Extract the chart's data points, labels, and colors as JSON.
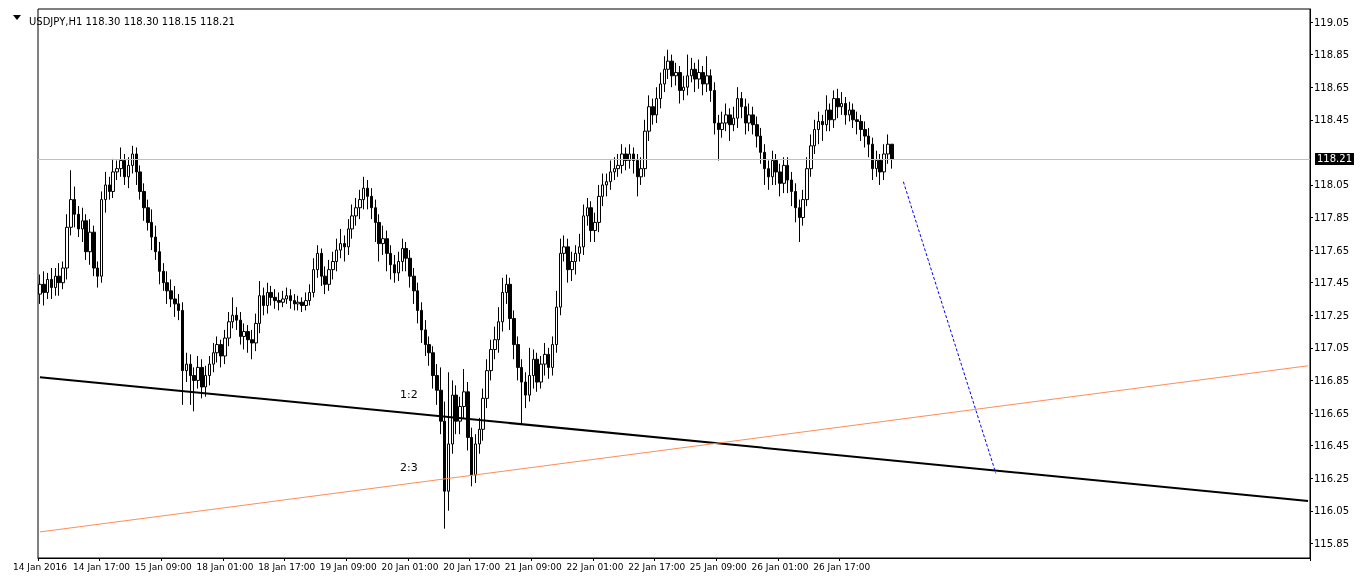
{
  "chart_data": {
    "type": "candlestick",
    "title": "USDJPY,H1 118.30 118.30 118.15 118.21",
    "color": "#000000",
    "categories": [
      "14 Jan 2016",
      null,
      null,
      null,
      null,
      null,
      null,
      null,
      null,
      null,
      null,
      null,
      null,
      null,
      null,
      null,
      "14 Jan 17:00",
      null,
      null,
      null,
      null,
      null,
      null,
      null,
      null,
      null,
      null,
      null,
      null,
      null,
      null,
      null,
      "15 Jan 09:00",
      null,
      null,
      null,
      null,
      null,
      null,
      null,
      null,
      null,
      null,
      null,
      null,
      null,
      null,
      null,
      "18 Jan 01:00",
      null,
      null,
      null,
      null,
      null,
      null,
      null,
      null,
      null,
      null,
      null,
      null,
      null,
      null,
      null,
      "18 Jan 17:00",
      null,
      null,
      null,
      null,
      null,
      null,
      null,
      null,
      null,
      null,
      null,
      null,
      null,
      null,
      null,
      "19 Jan 09:00",
      null,
      null,
      null,
      null,
      null,
      null,
      null,
      null,
      null,
      null,
      null,
      null,
      null,
      null,
      null,
      "20 Jan 01:00",
      null,
      null,
      null,
      null,
      null,
      null,
      null,
      null,
      null,
      null,
      null,
      null,
      null,
      null,
      null,
      "20 Jan 17:00",
      null,
      null,
      null,
      null,
      null,
      null,
      null,
      null,
      null,
      null,
      null,
      null,
      null,
      null,
      null,
      "21 Jan 09:00",
      null,
      null,
      null,
      null,
      null,
      null,
      null,
      null,
      null,
      null,
      null,
      null,
      null,
      null,
      null,
      "22 Jan 01:00",
      null,
      null,
      null,
      null,
      null,
      null,
      null,
      null,
      null,
      null,
      null,
      null,
      null,
      null,
      null,
      "22 Jan 17:00",
      null,
      null,
      null,
      null,
      null,
      null,
      null,
      null,
      null,
      null,
      null,
      null,
      null,
      null,
      null,
      "25 Jan 09:00",
      null,
      null,
      null,
      null,
      null,
      null,
      null,
      null,
      null,
      null,
      null,
      null,
      null,
      null,
      null,
      "26 Jan 01:00",
      null,
      null,
      null,
      null,
      null,
      null,
      null,
      null,
      null,
      null,
      null,
      null,
      null,
      null,
      null,
      "26 Jan 17:00",
      null,
      null,
      null,
      null,
      null,
      null,
      null,
      null,
      null,
      null,
      null,
      null,
      null,
      null,
      null,
      null,
      null,
      null,
      null,
      null,
      null,
      null,
      null,
      null,
      null,
      null,
      null,
      null,
      null,
      null,
      null,
      null,
      null,
      null,
      null,
      null,
      null,
      null,
      null,
      null,
      null,
      null,
      null,
      null,
      null,
      null,
      null,
      null,
      null,
      null,
      null,
      null,
      null,
      null,
      null,
      null,
      null,
      null,
      null,
      null,
      null,
      null,
      null,
      null,
      null,
      null,
      null,
      null,
      null,
      null,
      null,
      null,
      null,
      null,
      null,
      null,
      null,
      null,
      null,
      null,
      null,
      null,
      null,
      null,
      null,
      null,
      null,
      null,
      null,
      null,
      null,
      null,
      null,
      null,
      null,
      null,
      null,
      null,
      null,
      null,
      null,
      null,
      null,
      null,
      null,
      null,
      null,
      null,
      null,
      null,
      null,
      null,
      null,
      null,
      null,
      null,
      null,
      null,
      null,
      null,
      null
    ],
    "ohlc": [
      [
        117.38,
        117.5,
        117.32,
        117.44
      ],
      [
        117.44,
        117.52,
        117.31,
        117.39
      ],
      [
        117.39,
        117.51,
        117.35,
        117.47
      ],
      [
        117.47,
        117.54,
        117.35,
        117.42
      ],
      [
        117.42,
        117.54,
        117.37,
        117.49
      ],
      [
        117.49,
        117.57,
        117.37,
        117.45
      ],
      [
        117.45,
        117.58,
        117.41,
        117.54
      ],
      [
        117.54,
        117.87,
        117.47,
        117.79
      ],
      [
        117.79,
        118.14,
        117.74,
        117.96
      ],
      [
        117.96,
        118.04,
        117.79,
        117.87
      ],
      [
        117.87,
        117.92,
        117.73,
        117.78
      ],
      [
        117.78,
        117.91,
        117.7,
        117.83
      ],
      [
        117.83,
        117.87,
        117.59,
        117.64
      ],
      [
        117.64,
        117.84,
        117.56,
        117.76
      ],
      [
        117.76,
        117.8,
        117.49,
        117.54
      ],
      [
        117.54,
        117.58,
        117.42,
        117.49
      ],
      [
        117.49,
        118.01,
        117.45,
        117.96
      ],
      [
        117.96,
        118.13,
        117.88,
        118.05
      ],
      [
        118.05,
        118.1,
        117.96,
        118.01
      ],
      [
        118.01,
        118.21,
        117.97,
        118.13
      ],
      [
        118.13,
        118.2,
        118.08,
        118.15
      ],
      [
        118.15,
        118.28,
        118.1,
        118.2
      ],
      [
        118.2,
        118.24,
        118.05,
        118.1
      ],
      [
        118.1,
        118.22,
        118.03,
        118.17
      ],
      [
        118.17,
        118.29,
        118.12,
        118.24
      ],
      [
        118.24,
        118.28,
        118.05,
        118.13
      ],
      [
        118.13,
        118.17,
        117.96,
        118.01
      ],
      [
        118.01,
        118.06,
        117.83,
        117.91
      ],
      [
        117.91,
        117.96,
        117.77,
        117.82
      ],
      [
        117.82,
        117.9,
        117.65,
        117.73
      ],
      [
        117.73,
        117.8,
        117.59,
        117.64
      ],
      [
        117.64,
        117.7,
        117.44,
        117.52
      ],
      [
        117.52,
        117.57,
        117.4,
        117.45
      ],
      [
        117.45,
        117.52,
        117.32,
        117.4
      ],
      [
        117.4,
        117.47,
        117.3,
        117.35
      ],
      [
        117.35,
        117.43,
        117.24,
        117.32
      ],
      [
        117.32,
        117.38,
        117.22,
        117.28
      ],
      [
        117.28,
        117.33,
        116.7,
        116.91
      ],
      [
        116.91,
        117.02,
        116.84,
        116.95
      ],
      [
        116.95,
        117.01,
        116.7,
        116.88
      ],
      [
        116.88,
        116.93,
        116.66,
        116.85
      ],
      [
        116.85,
        117.0,
        116.8,
        116.93
      ],
      [
        116.93,
        116.98,
        116.74,
        116.81
      ],
      [
        116.81,
        116.94,
        116.75,
        116.88
      ],
      [
        116.88,
        117.0,
        116.82,
        116.95
      ],
      [
        116.95,
        117.08,
        116.9,
        117.02
      ],
      [
        117.02,
        117.12,
        116.96,
        117.07
      ],
      [
        117.07,
        117.1,
        116.93,
        117.0
      ],
      [
        117.0,
        117.16,
        116.95,
        117.11
      ],
      [
        117.11,
        117.27,
        117.06,
        117.21
      ],
      [
        117.21,
        117.36,
        117.17,
        117.25
      ],
      [
        117.25,
        117.3,
        117.16,
        117.22
      ],
      [
        117.22,
        117.27,
        117.07,
        117.12
      ],
      [
        117.12,
        117.2,
        117.04,
        117.15
      ],
      [
        117.15,
        117.19,
        117.02,
        117.1
      ],
      [
        117.1,
        117.16,
        116.98,
        117.08
      ],
      [
        117.08,
        117.26,
        117.03,
        117.2
      ],
      [
        117.2,
        117.46,
        117.14,
        117.37
      ],
      [
        117.37,
        117.42,
        117.25,
        117.31
      ],
      [
        117.31,
        117.45,
        117.26,
        117.39
      ],
      [
        117.39,
        117.43,
        117.31,
        117.36
      ],
      [
        117.36,
        117.41,
        117.29,
        117.34
      ],
      [
        117.34,
        117.39,
        117.28,
        117.33
      ],
      [
        117.33,
        117.4,
        117.3,
        117.35
      ],
      [
        117.35,
        117.42,
        117.32,
        117.37
      ],
      [
        117.37,
        117.41,
        117.29,
        117.34
      ],
      [
        117.34,
        117.38,
        117.28,
        117.32
      ],
      [
        117.32,
        117.37,
        117.28,
        117.33
      ],
      [
        117.33,
        117.36,
        117.27,
        117.31
      ],
      [
        117.31,
        117.39,
        117.28,
        117.34
      ],
      [
        117.34,
        117.44,
        117.31,
        117.39
      ],
      [
        117.39,
        117.6,
        117.36,
        117.53
      ],
      [
        117.53,
        117.68,
        117.48,
        117.63
      ],
      [
        117.63,
        117.66,
        117.43,
        117.49
      ],
      [
        117.49,
        117.55,
        117.38,
        117.44
      ],
      [
        117.44,
        117.59,
        117.4,
        117.53
      ],
      [
        117.53,
        117.64,
        117.47,
        117.58
      ],
      [
        117.58,
        117.72,
        117.52,
        117.65
      ],
      [
        117.65,
        117.78,
        117.6,
        117.69
      ],
      [
        117.69,
        117.74,
        117.58,
        117.67
      ],
      [
        117.67,
        117.84,
        117.62,
        117.78
      ],
      [
        117.78,
        117.93,
        117.72,
        117.86
      ],
      [
        117.86,
        117.97,
        117.8,
        117.91
      ],
      [
        117.91,
        118.02,
        117.84,
        117.96
      ],
      [
        117.96,
        118.1,
        117.9,
        118.03
      ],
      [
        118.03,
        118.08,
        117.9,
        117.98
      ],
      [
        117.98,
        118.03,
        117.84,
        117.91
      ],
      [
        117.91,
        117.96,
        117.7,
        117.82
      ],
      [
        117.82,
        117.87,
        117.58,
        117.69
      ],
      [
        117.69,
        117.8,
        117.62,
        117.72
      ],
      [
        117.72,
        117.77,
        117.52,
        117.63
      ],
      [
        117.63,
        117.68,
        117.47,
        117.56
      ],
      [
        117.56,
        117.62,
        117.45,
        117.51
      ],
      [
        117.51,
        117.64,
        117.46,
        117.58
      ],
      [
        117.58,
        117.72,
        117.52,
        117.66
      ],
      [
        117.66,
        117.7,
        117.52,
        117.6
      ],
      [
        117.6,
        117.65,
        117.42,
        117.49
      ],
      [
        117.49,
        117.54,
        117.32,
        117.4
      ],
      [
        117.4,
        117.45,
        117.2,
        117.28
      ],
      [
        117.28,
        117.33,
        117.08,
        117.16
      ],
      [
        117.16,
        117.22,
        117.0,
        117.07
      ],
      [
        117.07,
        117.12,
        116.94,
        117.02
      ],
      [
        117.02,
        117.06,
        116.8,
        116.88
      ],
      [
        116.88,
        116.95,
        116.7,
        116.79
      ],
      [
        116.79,
        116.93,
        116.52,
        116.6
      ],
      [
        116.6,
        116.72,
        115.94,
        116.17
      ],
      [
        116.17,
        116.9,
        116.05,
        116.46
      ],
      [
        116.46,
        116.85,
        116.4,
        116.76
      ],
      [
        116.76,
        116.82,
        116.52,
        116.6
      ],
      [
        116.6,
        116.75,
        116.52,
        116.69
      ],
      [
        116.69,
        116.92,
        116.62,
        116.78
      ],
      [
        116.78,
        116.84,
        116.42,
        116.5
      ],
      [
        116.5,
        116.56,
        116.2,
        116.27
      ],
      [
        116.27,
        116.52,
        116.22,
        116.46
      ],
      [
        116.46,
        116.62,
        116.4,
        116.55
      ],
      [
        116.55,
        116.8,
        116.48,
        116.74
      ],
      [
        116.74,
        116.98,
        116.68,
        116.91
      ],
      [
        116.91,
        117.1,
        116.85,
        117.04
      ],
      [
        117.04,
        117.18,
        116.98,
        117.1
      ],
      [
        117.1,
        117.3,
        117.02,
        117.21
      ],
      [
        117.21,
        117.48,
        117.15,
        117.39
      ],
      [
        117.39,
        117.5,
        117.32,
        117.44
      ],
      [
        117.44,
        117.48,
        117.16,
        117.23
      ],
      [
        117.23,
        117.28,
        116.98,
        117.07
      ],
      [
        117.07,
        117.12,
        116.85,
        116.93
      ],
      [
        116.93,
        116.98,
        116.58,
        116.84
      ],
      [
        116.84,
        116.9,
        116.68,
        116.76
      ],
      [
        116.76,
        117.05,
        116.72,
        116.88
      ],
      [
        116.88,
        117.04,
        116.8,
        116.98
      ],
      [
        116.98,
        117.02,
        116.78,
        116.84
      ],
      [
        116.84,
        117.0,
        116.8,
        116.95
      ],
      [
        116.95,
        117.08,
        116.88,
        117.01
      ],
      [
        117.01,
        117.05,
        116.86,
        116.93
      ],
      [
        116.93,
        117.12,
        116.88,
        117.07
      ],
      [
        117.07,
        117.4,
        117.02,
        117.3
      ],
      [
        117.3,
        117.72,
        117.25,
        117.63
      ],
      [
        117.63,
        117.74,
        117.58,
        117.67
      ],
      [
        117.67,
        117.72,
        117.45,
        117.53
      ],
      [
        117.53,
        117.64,
        117.46,
        117.58
      ],
      [
        117.58,
        117.68,
        117.5,
        117.63
      ],
      [
        117.63,
        117.75,
        117.58,
        117.67
      ],
      [
        117.67,
        117.93,
        117.62,
        117.86
      ],
      [
        117.86,
        117.97,
        117.8,
        117.91
      ],
      [
        117.91,
        117.95,
        117.7,
        117.77
      ],
      [
        117.77,
        117.88,
        117.7,
        117.82
      ],
      [
        117.82,
        118.05,
        117.76,
        117.98
      ],
      [
        117.98,
        118.12,
        117.92,
        118.05
      ],
      [
        118.05,
        118.12,
        117.98,
        118.07
      ],
      [
        118.07,
        118.2,
        118.02,
        118.13
      ],
      [
        118.13,
        118.22,
        118.08,
        118.15
      ],
      [
        118.15,
        118.24,
        118.1,
        118.17
      ],
      [
        118.17,
        118.3,
        118.12,
        118.24
      ],
      [
        118.24,
        118.28,
        118.14,
        118.2
      ],
      [
        118.2,
        118.3,
        118.15,
        118.24
      ],
      [
        118.24,
        118.28,
        118.12,
        118.2
      ],
      [
        118.2,
        118.24,
        117.98,
        118.1
      ],
      [
        118.1,
        118.22,
        118.05,
        118.15
      ],
      [
        118.15,
        118.45,
        118.1,
        118.38
      ],
      [
        118.38,
        118.6,
        118.32,
        118.53
      ],
      [
        118.53,
        118.58,
        118.42,
        118.48
      ],
      [
        118.48,
        118.65,
        118.43,
        118.58
      ],
      [
        118.58,
        118.74,
        118.52,
        118.67
      ],
      [
        118.67,
        118.84,
        118.62,
        118.76
      ],
      [
        118.76,
        118.88,
        118.7,
        118.81
      ],
      [
        118.81,
        118.85,
        118.65,
        118.72
      ],
      [
        118.72,
        118.8,
        118.66,
        118.74
      ],
      [
        118.74,
        118.78,
        118.55,
        118.63
      ],
      [
        118.63,
        118.72,
        118.57,
        118.65
      ],
      [
        118.65,
        118.85,
        118.6,
        118.72
      ],
      [
        118.72,
        118.83,
        118.68,
        118.76
      ],
      [
        118.76,
        118.8,
        118.62,
        118.7
      ],
      [
        118.7,
        118.82,
        118.64,
        118.74
      ],
      [
        118.74,
        118.78,
        118.6,
        118.67
      ],
      [
        118.67,
        118.84,
        118.62,
        118.72
      ],
      [
        118.72,
        118.76,
        118.56,
        118.63
      ],
      [
        118.63,
        118.68,
        118.36,
        118.43
      ],
      [
        118.43,
        118.48,
        118.2,
        118.39
      ],
      [
        118.39,
        118.5,
        118.34,
        118.43
      ],
      [
        118.43,
        118.55,
        118.38,
        118.48
      ],
      [
        118.48,
        118.52,
        118.32,
        118.42
      ],
      [
        118.42,
        118.53,
        118.38,
        118.46
      ],
      [
        118.46,
        118.65,
        118.4,
        118.58
      ],
      [
        118.58,
        118.62,
        118.46,
        118.53
      ],
      [
        118.53,
        118.58,
        118.36,
        118.43
      ],
      [
        118.43,
        118.55,
        118.38,
        118.48
      ],
      [
        118.48,
        118.53,
        118.36,
        118.42
      ],
      [
        118.42,
        118.47,
        118.28,
        118.35
      ],
      [
        118.35,
        118.4,
        118.18,
        118.25
      ],
      [
        118.25,
        118.3,
        118.05,
        118.15
      ],
      [
        118.15,
        118.2,
        118.02,
        118.1
      ],
      [
        118.1,
        118.26,
        118.05,
        118.2
      ],
      [
        118.2,
        118.24,
        118.05,
        118.13
      ],
      [
        118.13,
        118.18,
        117.98,
        118.06
      ],
      [
        118.06,
        118.22,
        118.0,
        118.17
      ],
      [
        118.17,
        118.22,
        118.0,
        118.08
      ],
      [
        118.08,
        118.13,
        117.92,
        118.01
      ],
      [
        118.01,
        118.06,
        117.82,
        117.91
      ],
      [
        117.91,
        117.96,
        117.7,
        117.85
      ],
      [
        117.85,
        118.02,
        117.8,
        117.96
      ],
      [
        117.96,
        118.22,
        117.92,
        118.15
      ],
      [
        118.15,
        118.36,
        118.1,
        118.29
      ],
      [
        118.29,
        118.45,
        118.24,
        118.39
      ],
      [
        118.39,
        118.5,
        118.3,
        118.44
      ],
      [
        118.44,
        118.48,
        118.32,
        118.42
      ],
      [
        118.42,
        118.6,
        118.38,
        118.51
      ],
      [
        118.51,
        118.55,
        118.38,
        118.45
      ],
      [
        118.45,
        118.63,
        118.4,
        118.58
      ],
      [
        118.58,
        118.64,
        118.46,
        118.53
      ],
      [
        118.53,
        118.62,
        118.48,
        118.55
      ],
      [
        118.55,
        118.59,
        118.42,
        118.48
      ],
      [
        118.48,
        118.56,
        118.44,
        118.51
      ],
      [
        118.51,
        118.55,
        118.4,
        118.45
      ],
      [
        118.45,
        118.5,
        118.36,
        118.44
      ],
      [
        118.44,
        118.48,
        118.32,
        118.39
      ],
      [
        118.39,
        118.44,
        118.28,
        118.35
      ],
      [
        118.35,
        118.4,
        118.22,
        118.3
      ],
      [
        118.3,
        118.34,
        118.08,
        118.15
      ],
      [
        118.15,
        118.26,
        118.1,
        118.2
      ],
      [
        118.2,
        118.24,
        118.05,
        118.13
      ],
      [
        118.13,
        118.3,
        118.08,
        118.24
      ],
      [
        118.24,
        118.36,
        118.18,
        118.3
      ],
      [
        118.3,
        118.3,
        118.15,
        118.21
      ],
      null,
      null,
      null,
      null,
      null,
      null,
      null,
      null,
      null,
      null,
      null,
      null,
      null,
      null,
      null,
      null,
      null,
      null,
      null,
      null,
      null,
      null,
      null,
      null,
      null,
      null,
      null,
      null,
      null,
      null,
      null,
      null,
      null,
      null,
      null,
      null,
      null,
      null,
      null,
      null,
      null,
      null,
      null,
      null,
      null,
      null,
      null,
      null,
      null,
      null,
      null,
      null,
      null,
      null,
      null,
      null,
      null,
      null,
      null,
      null,
      null,
      null,
      null,
      null,
      null,
      null,
      null,
      null,
      null,
      null,
      null,
      null,
      null,
      null,
      null,
      null,
      null,
      null,
      null,
      null,
      null,
      null,
      null,
      null,
      null,
      null,
      null,
      null,
      null,
      null,
      null,
      null,
      null,
      null,
      null,
      null,
      null,
      null,
      null,
      null,
      null,
      null,
      null,
      null,
      null,
      null,
      null,
      null
    ],
    "series": [
      {
        "type": "line",
        "color": "#000000",
        "values": [
          116.87,
          null,
          null,
          null,
          null,
          null,
          null,
          null,
          null,
          null,
          null,
          null,
          null,
          null,
          null,
          null,
          null,
          null,
          null,
          null,
          null,
          null,
          null,
          null,
          null,
          null,
          null,
          null,
          null,
          null,
          null,
          null,
          null,
          null,
          null,
          null,
          null,
          null,
          null,
          null,
          null,
          null,
          null,
          null,
          null,
          null,
          null,
          null,
          null,
          null,
          null,
          null,
          null,
          null,
          null,
          null,
          null,
          null,
          null,
          null,
          null,
          null,
          null,
          null,
          null,
          null,
          null,
          null,
          null,
          null,
          null,
          null,
          null,
          null,
          null,
          null,
          null,
          null,
          null,
          null,
          null,
          null,
          null,
          null,
          null,
          null,
          null,
          null,
          null,
          null,
          null,
          null,
          null,
          null,
          null,
          null,
          null,
          null,
          null,
          null,
          null,
          null,
          null,
          null,
          null,
          null,
          null,
          null,
          null,
          null,
          null,
          null,
          null,
          null,
          null,
          null,
          null,
          null,
          null,
          null,
          null,
          null,
          null,
          null,
          null,
          null,
          null,
          null,
          null,
          null,
          null,
          null,
          null,
          null,
          null,
          null,
          null,
          null,
          null,
          null,
          null,
          null,
          null,
          null,
          null,
          null,
          null,
          null,
          null,
          null,
          null,
          null,
          null,
          null,
          null,
          null,
          null,
          null,
          null,
          null,
          null,
          null,
          null,
          null,
          null,
          null,
          null,
          null,
          null,
          null,
          null,
          null,
          null,
          null,
          null,
          null,
          null,
          null,
          null,
          null,
          null,
          null,
          null,
          null,
          null,
          null,
          null,
          null,
          null,
          null,
          null,
          null,
          null,
          null,
          null,
          null,
          null,
          null,
          null,
          null,
          null,
          null,
          null,
          null,
          null,
          null,
          null,
          null,
          null,
          null,
          null,
          null,
          null,
          null,
          null,
          null,
          null,
          null,
          null,
          null,
          null,
          null,
          null,
          null,
          null,
          null,
          null,
          null,
          null,
          null,
          null,
          null,
          null,
          null,
          null,
          null,
          null,
          null,
          null,
          null,
          null,
          null,
          null,
          null,
          null,
          null,
          null,
          null,
          null,
          null,
          null,
          null,
          null,
          null,
          null,
          null,
          null,
          null,
          null,
          null,
          null,
          null,
          null,
          null,
          null,
          null,
          null,
          null,
          null,
          null,
          null,
          null,
          null,
          null,
          null,
          null,
          null,
          null,
          null,
          null,
          null,
          null,
          null,
          null,
          null,
          null,
          null,
          null,
          null,
          null,
          null,
          null,
          null,
          null,
          null,
          null,
          null,
          null,
          null,
          null,
          null,
          null,
          null,
          null,
          null,
          null,
          null,
          null,
          null,
          null,
          null,
          null,
          null,
          null,
          null,
          null,
          null,
          null,
          null,
          null,
          null,
          null,
          null,
          null,
          null,
          null,
          null,
          null,
          null,
          116.11
        ]
      },
      {
        "type": "line",
        "color": "#ff8c5a",
        "values": [
          115.92,
          null,
          null,
          null,
          null,
          null,
          null,
          null,
          null,
          null,
          null,
          null,
          null,
          null,
          null,
          null,
          null,
          null,
          null,
          null,
          null,
          null,
          null,
          null,
          null,
          null,
          null,
          null,
          null,
          null,
          null,
          null,
          null,
          null,
          null,
          null,
          null,
          null,
          null,
          null,
          null,
          null,
          null,
          null,
          null,
          null,
          null,
          null,
          null,
          null,
          null,
          null,
          null,
          null,
          null,
          null,
          null,
          null,
          null,
          null,
          null,
          null,
          null,
          null,
          null,
          null,
          null,
          null,
          null,
          null,
          null,
          null,
          null,
          null,
          null,
          null,
          null,
          null,
          null,
          null,
          null,
          null,
          null,
          null,
          null,
          null,
          null,
          null,
          null,
          null,
          null,
          null,
          null,
          null,
          null,
          null,
          null,
          null,
          null,
          null,
          null,
          null,
          null,
          null,
          null,
          null,
          null,
          null,
          null,
          null,
          null,
          null,
          null,
          null,
          null,
          null,
          null,
          null,
          null,
          null,
          null,
          null,
          null,
          null,
          null,
          null,
          null,
          null,
          null,
          null,
          null,
          null,
          null,
          null,
          null,
          null,
          null,
          null,
          null,
          null,
          null,
          null,
          null,
          null,
          null,
          null,
          null,
          null,
          null,
          null,
          null,
          null,
          null,
          null,
          null,
          null,
          null,
          null,
          null,
          null,
          null,
          null,
          null,
          null,
          null,
          null,
          null,
          null,
          null,
          null,
          null,
          null,
          null,
          null,
          null,
          null,
          null,
          null,
          null,
          null,
          null,
          null,
          null,
          null,
          null,
          null,
          null,
          null,
          null,
          null,
          null,
          null,
          null,
          null,
          null,
          null,
          null,
          null,
          null,
          null,
          null,
          null,
          null,
          null,
          null,
          null,
          null,
          null,
          null,
          null,
          null,
          null,
          null,
          null,
          null,
          null,
          null,
          null,
          null,
          null,
          null,
          null,
          null,
          null,
          null,
          null,
          null,
          null,
          null,
          null,
          null,
          null,
          null,
          null,
          null,
          null,
          null,
          null,
          null,
          null,
          null,
          null,
          null,
          null,
          null,
          null,
          null,
          null,
          null,
          null,
          null,
          null,
          null,
          null,
          null,
          null,
          null,
          null,
          null,
          null,
          null,
          null,
          null,
          null,
          null,
          null,
          null,
          null,
          null,
          null,
          null,
          null,
          null,
          null,
          null,
          null,
          null,
          null,
          null,
          null,
          null,
          null,
          null,
          null,
          null,
          null,
          null,
          null,
          null,
          null,
          null,
          null,
          null,
          null,
          null,
          null,
          null,
          null,
          null,
          null,
          null,
          null,
          null,
          null,
          null,
          null,
          null,
          null,
          null,
          null,
          null,
          null,
          null,
          null,
          null,
          null,
          null,
          null,
          null,
          null,
          null,
          null,
          null,
          null,
          null,
          null,
          null,
          null,
          null,
          116.94
        ]
      },
      {
        "type": "line",
        "color": "#0000ff",
        "line_style": "dashed",
        "values": [
          null,
          null,
          null,
          null,
          null,
          null,
          null,
          null,
          null,
          null,
          null,
          null,
          null,
          null,
          null,
          null,
          null,
          null,
          null,
          null,
          null,
          null,
          null,
          null,
          null,
          null,
          null,
          null,
          null,
          null,
          null,
          null,
          null,
          null,
          null,
          null,
          null,
          null,
          null,
          null,
          null,
          null,
          null,
          null,
          null,
          null,
          null,
          null,
          null,
          null,
          null,
          null,
          null,
          null,
          null,
          null,
          null,
          null,
          null,
          null,
          null,
          null,
          null,
          null,
          null,
          null,
          null,
          null,
          null,
          null,
          null,
          null,
          null,
          null,
          null,
          null,
          null,
          null,
          null,
          null,
          null,
          null,
          null,
          null,
          null,
          null,
          null,
          null,
          null,
          null,
          null,
          null,
          null,
          null,
          null,
          null,
          null,
          null,
          null,
          null,
          null,
          null,
          null,
          null,
          null,
          null,
          null,
          null,
          null,
          null,
          null,
          null,
          null,
          null,
          null,
          null,
          null,
          null,
          null,
          null,
          null,
          null,
          null,
          null,
          null,
          null,
          null,
          null,
          null,
          null,
          null,
          null,
          null,
          null,
          null,
          null,
          null,
          null,
          null,
          null,
          null,
          null,
          null,
          null,
          null,
          null,
          null,
          null,
          null,
          null,
          null,
          null,
          null,
          null,
          null,
          null,
          null,
          null,
          null,
          null,
          null,
          null,
          null,
          null,
          null,
          null,
          null,
          null,
          null,
          null,
          null,
          null,
          null,
          null,
          null,
          null,
          null,
          null,
          null,
          null,
          null,
          null,
          null,
          null,
          null,
          null,
          null,
          null,
          null,
          null,
          null,
          null,
          null,
          null,
          null,
          null,
          null,
          null,
          null,
          null,
          null,
          null,
          null,
          null,
          null,
          null,
          null,
          null,
          null,
          null,
          null,
          null,
          null,
          null,
          null,
          null,
          null,
          null,
          null,
          null,
          null,
          null,
          null,
          null,
          118.07,
          null,
          null,
          null,
          null,
          null,
          null,
          null,
          null,
          null,
          null,
          null,
          null,
          null,
          null,
          null,
          null,
          null,
          null,
          null,
          null,
          null,
          null,
          null,
          116.28,
          null,
          null,
          null,
          null,
          null,
          null,
          null,
          null,
          null,
          null,
          null,
          null,
          null,
          null,
          null,
          null,
          null,
          null,
          null,
          null,
          null,
          null,
          null,
          null,
          null,
          null,
          null,
          null,
          null,
          null,
          null,
          null,
          null,
          null,
          null,
          null,
          null,
          null,
          null,
          null,
          null,
          null,
          null,
          null,
          null,
          null,
          null,
          null,
          null,
          null,
          null,
          null,
          null,
          null,
          null,
          null,
          null,
          null,
          null,
          null,
          null,
          null,
          null,
          null,
          null,
          null,
          null,
          null,
          null,
          null,
          null,
          null,
          null,
          null,
          null,
          null,
          null,
          null,
          null,
          null,
          null
        ]
      }
    ],
    "ylim": [
      115.76,
      119.13
    ],
    "yticks": [
      115.85,
      116.05,
      116.25,
      116.45,
      116.65,
      116.85,
      117.05,
      117.25,
      117.45,
      117.65,
      117.85,
      118.05,
      118.45,
      118.65,
      118.85,
      119.05
    ],
    "ref_lines": [
      {
        "axis": "y",
        "value": 118.21,
        "label": "118.21",
        "color": "#c0c0c0"
      }
    ],
    "annotations": [
      "1:2",
      "2:3"
    ],
    "marker": "none",
    "grid": false
  }
}
